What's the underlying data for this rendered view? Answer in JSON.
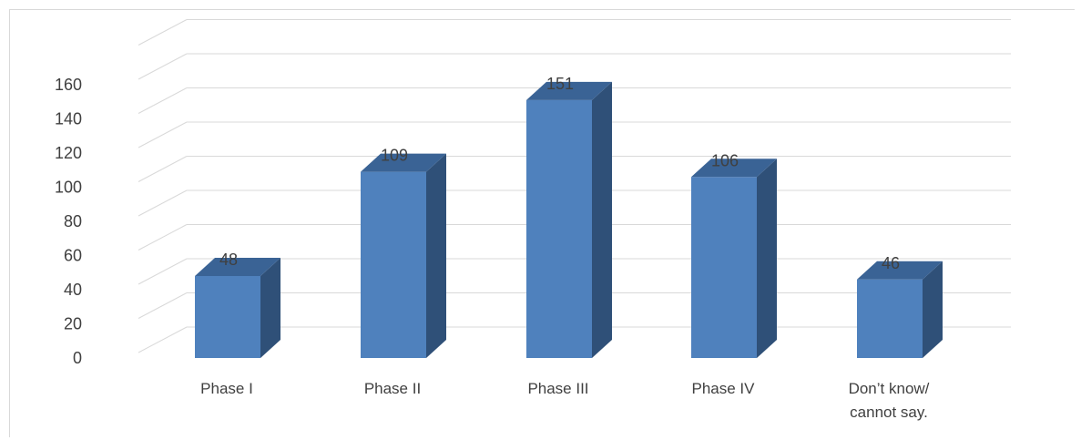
{
  "chart_data": {
    "type": "bar",
    "style": "3d-column",
    "categories": [
      [
        "Phase I"
      ],
      [
        "Phase II"
      ],
      [
        "Phase III"
      ],
      [
        "Phase IV"
      ],
      [
        "Don’t know/",
        "cannot say."
      ]
    ],
    "values": [
      48,
      109,
      151,
      106,
      46
    ],
    "data_labels": [
      "48",
      "109",
      "151",
      "106",
      "46"
    ],
    "y_ticks": [
      "0",
      "20",
      "40",
      "60",
      "80",
      "100",
      "120",
      "140",
      "160"
    ],
    "ylim": [
      0,
      160
    ],
    "grid": true,
    "legend": "none",
    "title": "",
    "xlabel": "",
    "ylabel": "",
    "colors": {
      "bar_front": "#4F81BD",
      "bar_side": "#2F5078",
      "bar_top": "#3A6395",
      "grid": "#d9d9d9",
      "text": "#404040"
    }
  }
}
